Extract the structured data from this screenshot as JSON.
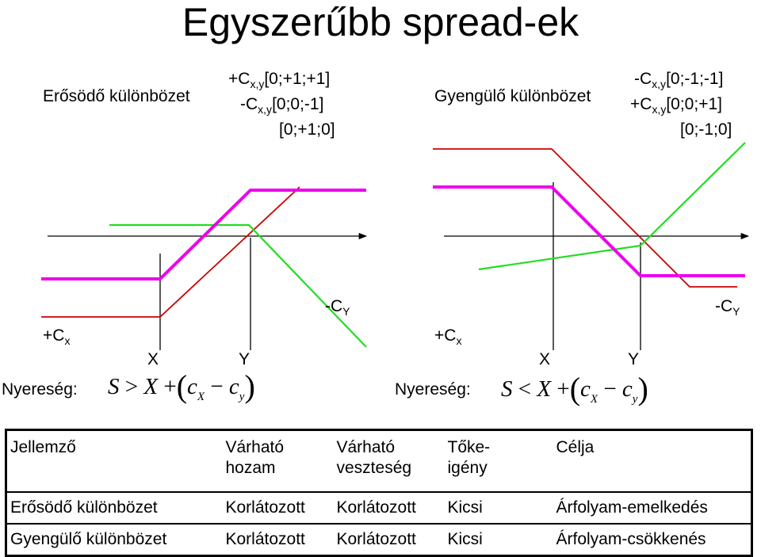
{
  "title": "Egyszerűbb spread-ek",
  "left": {
    "name": "Erősödő különbözet",
    "pos1_pre": "+C",
    "pos1_sub": "x,y",
    "pos1_post": "[0;+1;+1]",
    "pos2_pre": "-C",
    "pos2_sub": "x,y",
    "pos2_post": "[0;0;-1]",
    "pos3": "[0;+1;0]",
    "long_pre": "+C",
    "long_sub": "x",
    "short_pre": "-C",
    "short_sub": "Y",
    "strike_x": "X",
    "strike_y": "Y",
    "profit_label": "Nyereség:",
    "formula": {
      "s": "S",
      "op": ">",
      "x": "X",
      "plus": "+",
      "c1": "c",
      "c1sub": "X",
      "minus": "−",
      "c2": "c",
      "c2sub": "y"
    }
  },
  "right": {
    "name": "Gyengülő különbözet",
    "pos1_pre": "-C",
    "pos1_sub": "x,y",
    "pos1_post": "[0;-1;-1]",
    "pos2_pre": "+C",
    "pos2_sub": "x,y",
    "pos2_post": "[0;0;+1]",
    "pos3": "[0;-1;0]",
    "long_pre": "+C",
    "long_sub": "x",
    "short_pre": "-C",
    "short_sub": "Y",
    "strike_x": "X",
    "strike_y": "Y",
    "profit_label": "Nyereség:",
    "formula": {
      "s": "S",
      "op": "<",
      "x": "X",
      "plus": "+",
      "c1": "c",
      "c1sub": "X",
      "minus": "−",
      "c2": "c",
      "c2sub": "y"
    }
  },
  "colors": {
    "long_call": "#cc0000",
    "short_call": "#22dd22",
    "spread": "#ee00ee",
    "axis": "#000000"
  },
  "table": {
    "headers": [
      "Jellemző",
      "Várható hozam",
      "Várható veszteség",
      "Tőke-igény",
      "Célja"
    ],
    "header_lines": [
      [
        "Jellemző"
      ],
      [
        "Várható",
        "hozam"
      ],
      [
        "Várható",
        "veszteség"
      ],
      [
        "Tőke-",
        "igény"
      ],
      [
        "Célja"
      ]
    ],
    "rows": [
      [
        "Erősödő különbözet",
        "Korlátozott",
        "Korlátozott",
        "Kicsi",
        "Árfolyam-emelkedés"
      ],
      [
        "Gyengülő különbözet",
        "Korlátozott",
        "Korlátozott",
        "Kicsi",
        "Árfolyam-csökkenés"
      ]
    ]
  }
}
